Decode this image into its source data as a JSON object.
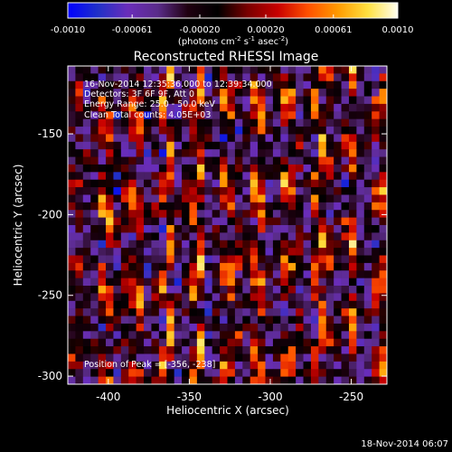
{
  "colorbar": {
    "min": -0.001,
    "max": 0.001,
    "tick_labels": [
      "-0.0010",
      "-0.00061",
      "-0.00020",
      "0.00020",
      "0.00061",
      "0.0010"
    ],
    "tick_values": [
      -0.001,
      -0.00061,
      -0.0002,
      0.0002,
      0.00061,
      0.001
    ],
    "units_main": "(photons cm",
    "units_sup1": "-2",
    "units_mid": " s",
    "units_sup2": "-1",
    "units_end": " asec",
    "units_sup3": "-2",
    "units_close": ")",
    "colormap": [
      "#0000ff",
      "#2030c8",
      "#6a2dba",
      "#5a2c8a",
      "#200010",
      "#000000",
      "#7a0000",
      "#c80000",
      "#ff5000",
      "#ff9a00",
      "#ffe040",
      "#fffff0"
    ]
  },
  "chart_data": {
    "type": "heatmap",
    "title": "Reconstructed RHESSI Image",
    "xlabel": "Heliocentric X (arcsec)",
    "ylabel": "Heliocentric Y (arcsec)",
    "xlim": [
      -425,
      -228
    ],
    "ylim": [
      -305,
      -108
    ],
    "x_ticks": [
      -400,
      -350,
      -300,
      -250
    ],
    "x_tick_labels": [
      "-400",
      "-350",
      "-300",
      "-250"
    ],
    "y_ticks": [
      -150,
      -200,
      -250,
      -300
    ],
    "y_tick_labels": [
      "-150",
      "-200",
      "-250",
      "-300"
    ],
    "grid": false,
    "annotations": [
      "16-Nov-2014 12:35:36.000 to 12:39:34.000",
      "Detectors: 3F 6F 9F, Att 0",
      "Energy Range: 25.0 - 50.0 keV",
      "Clean    Total counts: 4.05E+03"
    ],
    "peak_label": "Position of Peak = [-356, -238]",
    "peak_position": [
      -356,
      -238
    ]
  },
  "footer": {
    "timestamp": "18-Nov-2014 06:07"
  }
}
